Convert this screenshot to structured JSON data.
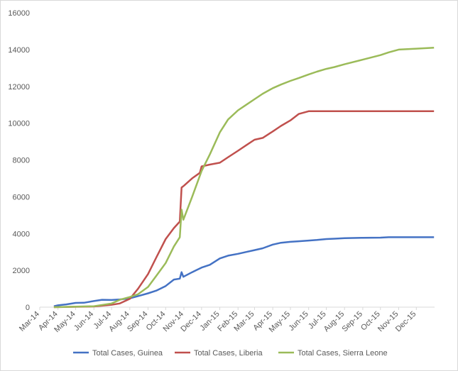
{
  "chart_data": {
    "type": "line",
    "title": "",
    "xlabel": "",
    "ylabel": "",
    "ylim": [
      0,
      16000
    ],
    "yticks": [
      0,
      2000,
      4000,
      6000,
      8000,
      10000,
      12000,
      14000,
      16000
    ],
    "x_tick_labels": [
      "Mar-14",
      "Apr-14",
      "May-14",
      "Jun-14",
      "Jul-14",
      "Aug-14",
      "Sep-14",
      "Oct-14",
      "Nov-14",
      "Dec-14",
      "Jan-15",
      "Feb-15",
      "Mar-15",
      "Apr-15",
      "May-15",
      "Jun-15",
      "Jul-15",
      "Aug-15",
      "Sep-15",
      "Oct-15",
      "Nov-15",
      "Dec-15"
    ],
    "grid": false,
    "legend_position": "bottom",
    "series": [
      {
        "name": "Total Cases, Guinea",
        "color": "#4472c4",
        "x": [
          "2014-03-25",
          "2014-04-01",
          "2014-04-15",
          "2014-05-01",
          "2014-05-15",
          "2014-06-01",
          "2014-06-15",
          "2014-07-01",
          "2014-07-15",
          "2014-08-01",
          "2014-08-15",
          "2014-09-01",
          "2014-09-15",
          "2014-10-01",
          "2014-10-15",
          "2014-10-25",
          "2014-10-28",
          "2014-10-31",
          "2014-11-15",
          "2014-12-01",
          "2014-12-15",
          "2015-01-01",
          "2015-01-15",
          "2015-02-01",
          "2015-02-15",
          "2015-03-01",
          "2015-03-15",
          "2015-04-01",
          "2015-04-15",
          "2015-05-01",
          "2015-05-15",
          "2015-06-01",
          "2015-06-15",
          "2015-07-01",
          "2015-07-15",
          "2015-08-01",
          "2015-09-01",
          "2015-10-01",
          "2015-10-15",
          "2015-11-01",
          "2015-12-01",
          "2015-12-31"
        ],
        "values": [
          50,
          100,
          150,
          230,
          240,
          330,
          400,
          390,
          420,
          480,
          600,
          750,
          900,
          1150,
          1500,
          1550,
          1900,
          1650,
          1900,
          2150,
          2300,
          2650,
          2800,
          2900,
          3000,
          3100,
          3200,
          3400,
          3500,
          3550,
          3580,
          3620,
          3650,
          3700,
          3720,
          3750,
          3770,
          3780,
          3800,
          3800,
          3800,
          3800
        ]
      },
      {
        "name": "Total Cases, Liberia",
        "color": "#c0504d",
        "x": [
          "2014-03-25",
          "2014-06-01",
          "2014-07-01",
          "2014-07-15",
          "2014-08-01",
          "2014-08-15",
          "2014-09-01",
          "2014-09-15",
          "2014-10-01",
          "2014-10-15",
          "2014-10-25",
          "2014-10-28",
          "2014-11-01",
          "2014-11-15",
          "2014-11-28",
          "2014-12-01",
          "2014-12-15",
          "2015-01-01",
          "2015-01-15",
          "2015-02-01",
          "2015-02-15",
          "2015-03-01",
          "2015-03-15",
          "2015-04-01",
          "2015-04-15",
          "2015-05-01",
          "2015-05-15",
          "2015-06-01",
          "2015-12-31"
        ],
        "values": [
          0,
          40,
          130,
          200,
          450,
          1000,
          1800,
          2700,
          3700,
          4300,
          4650,
          6500,
          6600,
          7000,
          7300,
          7650,
          7750,
          7850,
          8150,
          8500,
          8800,
          9100,
          9200,
          9550,
          9850,
          10150,
          10500,
          10650,
          10650
        ]
      },
      {
        "name": "Total Cases, Sierra Leone",
        "color": "#9bbb59",
        "x": [
          "2014-03-25",
          "2014-06-01",
          "2014-07-01",
          "2014-07-15",
          "2014-08-01",
          "2014-08-15",
          "2014-09-01",
          "2014-09-15",
          "2014-10-01",
          "2014-10-15",
          "2014-10-25",
          "2014-10-28",
          "2014-10-31",
          "2014-11-15",
          "2014-12-01",
          "2014-12-15",
          "2015-01-01",
          "2015-01-15",
          "2015-02-01",
          "2015-02-15",
          "2015-03-01",
          "2015-03-15",
          "2015-04-01",
          "2015-04-15",
          "2015-05-01",
          "2015-05-15",
          "2015-06-01",
          "2015-06-15",
          "2015-07-01",
          "2015-07-15",
          "2015-08-01",
          "2015-09-01",
          "2015-10-01",
          "2015-10-15",
          "2015-11-01",
          "2015-12-01",
          "2015-12-31"
        ],
        "values": [
          0,
          50,
          200,
          400,
          550,
          700,
          1100,
          1700,
          2400,
          3300,
          3800,
          5300,
          4750,
          6000,
          7400,
          8300,
          9500,
          10200,
          10700,
          11000,
          11300,
          11600,
          11900,
          12100,
          12300,
          12450,
          12650,
          12800,
          12950,
          13050,
          13200,
          13450,
          13700,
          13850,
          14000,
          14050,
          14100
        ]
      }
    ]
  }
}
